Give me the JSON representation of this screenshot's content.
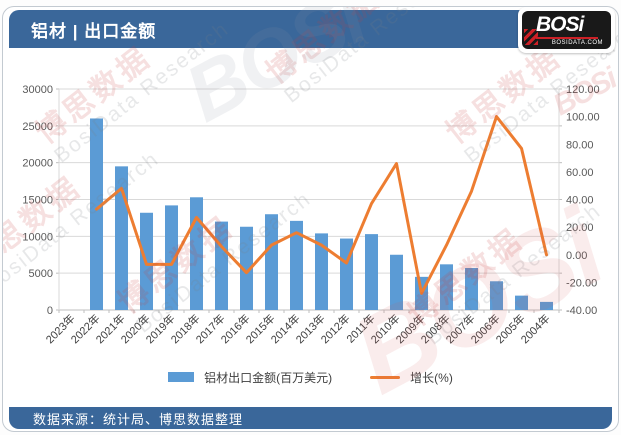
{
  "header": {
    "title": "铝材 | 出口金额",
    "logo_text": "BOSi",
    "logo_subtext": "BOSIDATA.COM"
  },
  "footer": {
    "source": "数据来源：统计局、博思数据整理"
  },
  "legend": {
    "bar_label": "铝材出口金额(百万美元)",
    "line_label": "增长(%)"
  },
  "watermark": {
    "cn": "博思数据",
    "en": "BosiData Research",
    "logo": "BOSi"
  },
  "colors": {
    "band_blue": "#3a679a",
    "bar_blue": "#5b9bd5",
    "line_orange": "#ed7d31",
    "gridline": "#d9d9d9",
    "axis_line": "#bfbfbf",
    "axis_text": "#595959",
    "logo_red": "#cc2026"
  },
  "chart_data": {
    "type": "bar",
    "subtype": "bar+line dual axis",
    "title": "铝材 | 出口金额",
    "categories": [
      "2023年",
      "2022年",
      "2021年",
      "2020年",
      "2019年",
      "2018年",
      "2017年",
      "2016年",
      "2015年",
      "2014年",
      "2013年",
      "2012年",
      "2011年",
      "2010年",
      "2009年",
      "2008年",
      "2007年",
      "2006年",
      "2005年",
      "2004年"
    ],
    "series": [
      {
        "name": "铝材出口金额(百万美元)",
        "type": "bar",
        "axis": "left",
        "values": [
          null,
          26000,
          19500,
          13200,
          14200,
          15300,
          12000,
          11300,
          13000,
          12100,
          10400,
          9700,
          10300,
          7500,
          4500,
          6200,
          5700,
          3900,
          1950,
          1100
        ]
      },
      {
        "name": "增长(%)",
        "type": "line",
        "axis": "right",
        "values": [
          null,
          33,
          48,
          -7,
          -7,
          27,
          6,
          -13,
          7,
          16,
          7,
          -6,
          37,
          66,
          -28,
          7,
          46,
          100,
          77,
          0
        ]
      }
    ],
    "left_axis": {
      "min": 0,
      "max": 30000,
      "step": 5000,
      "tick_labels": [
        "0",
        "5000",
        "10000",
        "15000",
        "20000",
        "25000",
        "30000"
      ]
    },
    "right_axis": {
      "min": -40,
      "max": 120,
      "step": 20,
      "tick_labels": [
        "-40.00",
        "-20.00",
        "0.00",
        "20.00",
        "40.00",
        "60.00",
        "80.00",
        "100.00",
        "120.00"
      ]
    },
    "grid": "horizontal only",
    "legend_position": "bottom center",
    "x_label_rotation": 45
  }
}
